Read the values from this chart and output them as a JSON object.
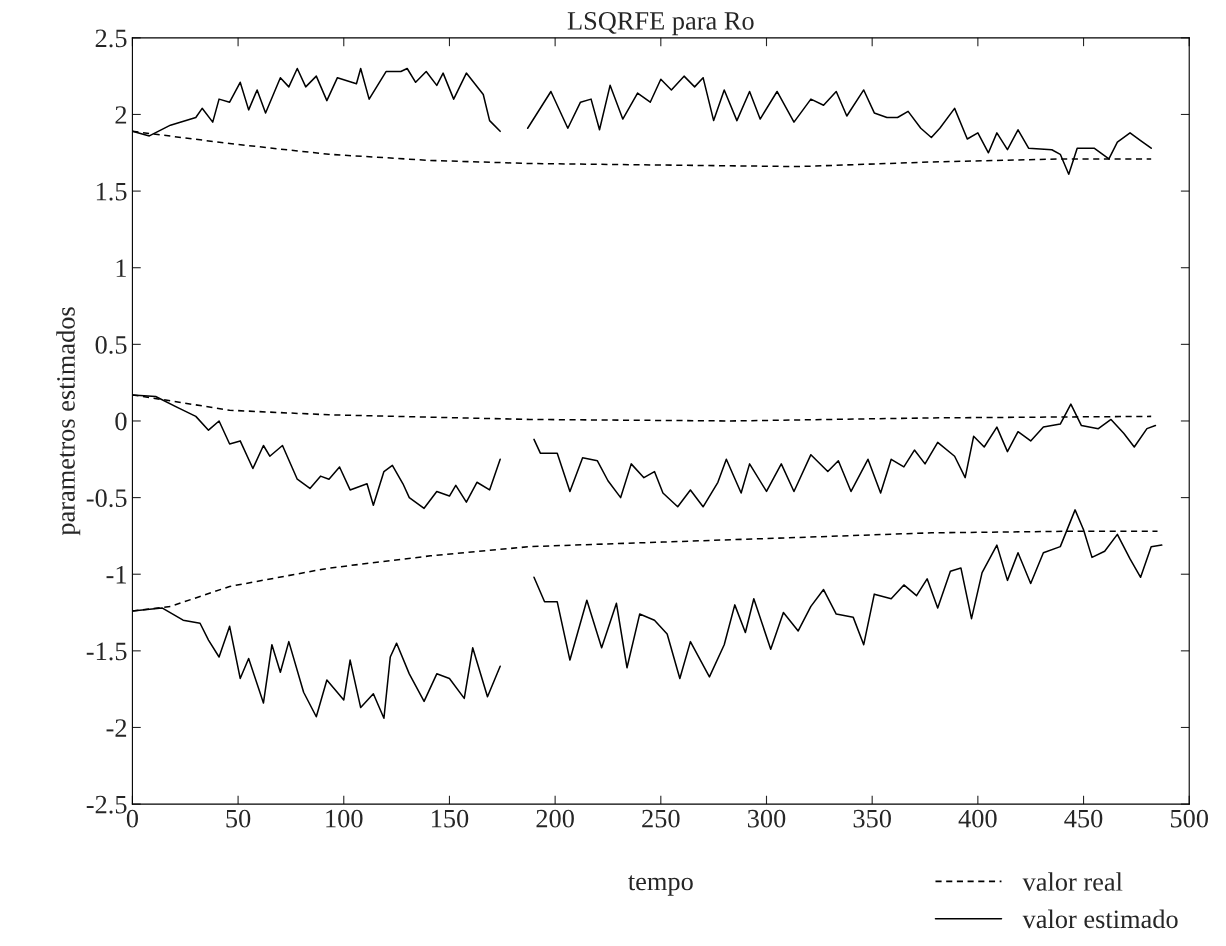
{
  "chart_data": {
    "type": "line",
    "title": "LSQRFE para Ro",
    "xlabel": "tempo",
    "ylabel": "parametros estimados",
    "xlim": [
      0,
      500
    ],
    "xticks": [
      0,
      50,
      100,
      150,
      200,
      250,
      300,
      350,
      400,
      450,
      500
    ],
    "ylim": [
      -2.5,
      2.5
    ],
    "yticks": [
      -2.5,
      -2,
      -1.5,
      -1,
      -0.5,
      0,
      0.5,
      1,
      1.5,
      2,
      2.5
    ],
    "grid": false,
    "legend": "bottom right",
    "marker": "none",
    "series": [
      {
        "name": "valor real",
        "color": "#000000",
        "line_style": "dashed",
        "x": [
          0,
          46,
          93,
          141,
          188,
          251,
          315,
          378,
          441,
          482
        ],
        "values": [
          1.89,
          1.81,
          1.74,
          1.7,
          1.68,
          1.67,
          1.66,
          1.69,
          1.71,
          1.71
        ]
      },
      {
        "color": "#000000",
        "line_style": "dashed",
        "x": [
          0,
          14,
          46,
          93,
          188,
          283,
          378,
          482
        ],
        "values": [
          0.17,
          0.14,
          0.07,
          0.04,
          0.01,
          0.0,
          0.02,
          0.03
        ]
      },
      {
        "color": "#000000",
        "line_style": "dashed",
        "x": [
          0,
          18,
          46,
          93,
          141,
          188,
          251,
          315,
          378,
          441,
          485
        ],
        "values": [
          -1.24,
          -1.21,
          -1.08,
          -0.96,
          -0.88,
          -0.82,
          -0.79,
          -0.76,
          -0.73,
          -0.72,
          -0.72
        ]
      },
      {
        "name": "valor estimado",
        "color": "#000000",
        "line_style": "solid",
        "x": [
          0,
          8,
          18,
          30,
          33,
          38,
          41,
          46,
          51,
          55,
          59,
          63,
          70,
          74,
          78,
          82,
          87,
          92,
          97,
          106,
          108,
          112,
          120,
          127,
          130,
          134,
          139,
          144,
          147,
          152,
          158,
          166,
          169,
          174,
          178,
          187,
          198,
          206,
          212,
          217,
          221,
          226,
          232,
          239,
          245,
          250,
          255,
          261,
          266,
          270,
          275,
          280,
          286,
          292,
          297,
          305,
          313,
          321,
          327,
          333,
          338,
          346,
          351,
          357,
          362,
          367,
          373,
          378,
          382,
          389,
          395,
          400,
          405,
          409,
          414,
          419,
          424,
          435,
          439,
          443,
          447,
          455,
          462,
          466,
          472,
          477,
          482
        ],
        "values": [
          1.89,
          1.86,
          1.93,
          1.98,
          2.04,
          1.95,
          2.1,
          2.08,
          2.21,
          2.03,
          2.16,
          2.01,
          2.24,
          2.18,
          2.3,
          2.18,
          2.25,
          2.09,
          2.24,
          2.2,
          2.3,
          2.1,
          2.28,
          2.28,
          2.3,
          2.21,
          2.28,
          2.19,
          2.27,
          2.1,
          2.27,
          2.13,
          1.96,
          1.89,
          null,
          1.91,
          2.15,
          1.91,
          2.08,
          2.1,
          1.9,
          2.19,
          1.97,
          2.14,
          2.08,
          2.23,
          2.16,
          2.25,
          2.18,
          2.24,
          1.96,
          2.16,
          1.96,
          2.15,
          1.97,
          2.15,
          1.95,
          2.1,
          2.06,
          2.15,
          1.99,
          2.16,
          2.01,
          1.98,
          1.98,
          2.02,
          1.91,
          1.85,
          1.91,
          2.04,
          1.84,
          1.88,
          1.75,
          1.88,
          1.77,
          1.9,
          1.78,
          1.77,
          1.74,
          1.61,
          1.78,
          1.78,
          1.71,
          1.82,
          1.88,
          1.83,
          1.78
        ]
      },
      {
        "color": "#000000",
        "line_style": "solid",
        "x": [
          0,
          11,
          21,
          30,
          36,
          41,
          46,
          51,
          57,
          62,
          65,
          71,
          78,
          84,
          89,
          93,
          98,
          103,
          111,
          114,
          119,
          123,
          128,
          131,
          138,
          144,
          150,
          153,
          158,
          163,
          169,
          174,
          178,
          190,
          193,
          201,
          207,
          213,
          220,
          225,
          231,
          236,
          242,
          247,
          251,
          258,
          264,
          270,
          277,
          281,
          288,
          292,
          300,
          307,
          313,
          321,
          329,
          334,
          340,
          348,
          354,
          359,
          365,
          370,
          375,
          381,
          389,
          394,
          398,
          403,
          409,
          414,
          419,
          425,
          431,
          439,
          444,
          449,
          457,
          463,
          469,
          474,
          480,
          484
        ],
        "values": [
          0.17,
          0.16,
          0.09,
          0.03,
          -0.06,
          0.0,
          -0.15,
          -0.13,
          -0.31,
          -0.16,
          -0.23,
          -0.16,
          -0.38,
          -0.44,
          -0.36,
          -0.38,
          -0.3,
          -0.45,
          -0.41,
          -0.55,
          -0.33,
          -0.29,
          -0.41,
          -0.5,
          -0.57,
          -0.46,
          -0.49,
          -0.42,
          -0.53,
          -0.4,
          -0.45,
          -0.25,
          null,
          -0.12,
          -0.21,
          -0.21,
          -0.46,
          -0.24,
          -0.26,
          -0.39,
          -0.5,
          -0.28,
          -0.37,
          -0.33,
          -0.47,
          -0.56,
          -0.45,
          -0.56,
          -0.4,
          -0.25,
          -0.47,
          -0.28,
          -0.46,
          -0.28,
          -0.46,
          -0.22,
          -0.33,
          -0.26,
          -0.46,
          -0.25,
          -0.47,
          -0.25,
          -0.3,
          -0.19,
          -0.28,
          -0.14,
          -0.23,
          -0.37,
          -0.1,
          -0.17,
          -0.04,
          -0.2,
          -0.07,
          -0.13,
          -0.04,
          -0.02,
          0.11,
          -0.03,
          -0.05,
          0.01,
          -0.08,
          -0.17,
          -0.05,
          -0.03
        ]
      },
      {
        "color": "#000000",
        "line_style": "solid",
        "x": [
          0,
          14,
          24,
          32,
          36,
          41,
          46,
          51,
          55,
          62,
          66,
          70,
          74,
          81,
          87,
          92,
          100,
          103,
          108,
          114,
          119,
          122,
          125,
          131,
          138,
          144,
          150,
          157,
          161,
          168,
          174,
          178,
          190,
          195,
          201,
          207,
          215,
          222,
          229,
          234,
          240,
          247,
          253,
          259,
          264,
          273,
          280,
          285,
          290,
          294,
          302,
          308,
          315,
          321,
          327,
          333,
          341,
          346,
          351,
          359,
          365,
          371,
          376,
          381,
          387,
          392,
          397,
          402,
          409,
          414,
          419,
          425,
          431,
          439,
          446,
          450,
          454,
          460,
          466,
          472,
          477,
          482,
          487
        ],
        "values": [
          -1.24,
          -1.22,
          -1.3,
          -1.32,
          -1.43,
          -1.54,
          -1.34,
          -1.68,
          -1.55,
          -1.84,
          -1.46,
          -1.64,
          -1.44,
          -1.77,
          -1.93,
          -1.69,
          -1.82,
          -1.56,
          -1.87,
          -1.78,
          -1.94,
          -1.54,
          -1.45,
          -1.65,
          -1.83,
          -1.65,
          -1.68,
          -1.81,
          -1.48,
          -1.8,
          -1.6,
          null,
          -1.02,
          -1.18,
          -1.18,
          -1.56,
          -1.17,
          -1.48,
          -1.19,
          -1.61,
          -1.26,
          -1.3,
          -1.39,
          -1.68,
          -1.44,
          -1.67,
          -1.46,
          -1.2,
          -1.38,
          -1.16,
          -1.49,
          -1.25,
          -1.37,
          -1.21,
          -1.1,
          -1.26,
          -1.28,
          -1.46,
          -1.13,
          -1.16,
          -1.07,
          -1.14,
          -1.03,
          -1.22,
          -0.98,
          -0.96,
          -1.29,
          -0.99,
          -0.81,
          -1.04,
          -0.86,
          -1.06,
          -0.86,
          -0.82,
          -0.58,
          -0.71,
          -0.89,
          -0.85,
          -0.74,
          -0.9,
          -1.02,
          -0.82,
          -0.81
        ]
      }
    ]
  }
}
